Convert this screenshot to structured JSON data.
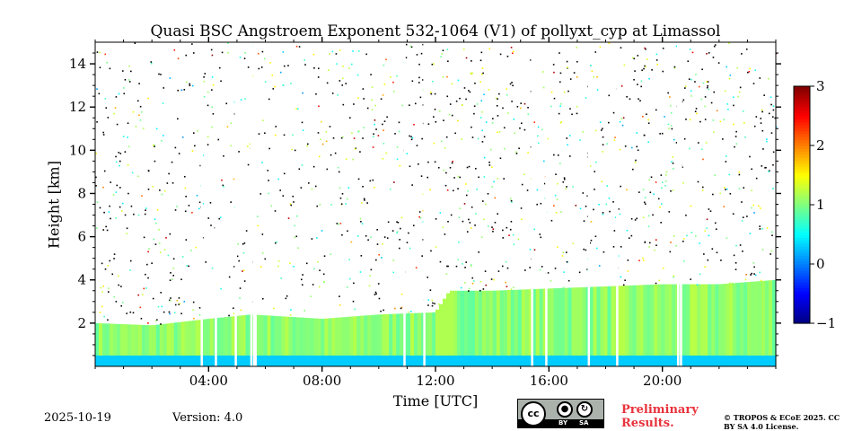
{
  "chart_data": {
    "type": "heatmap",
    "title": "Quasi BSC Angstroem Exponent 532-1064 (V1) of pollyxt_cyp at Limassol",
    "xlabel": "Time [UTC]",
    "ylabel": "Height [km]",
    "xlim": [
      0,
      24
    ],
    "ylim": [
      0,
      15
    ],
    "x_ticks": [
      {
        "value": 4,
        "label": "04:00"
      },
      {
        "value": 8,
        "label": "08:00"
      },
      {
        "value": 12,
        "label": "12:00"
      },
      {
        "value": 16,
        "label": "16:00"
      },
      {
        "value": 20,
        "label": "20:00"
      }
    ],
    "y_ticks": [
      {
        "value": 2,
        "label": "2"
      },
      {
        "value": 4,
        "label": "4"
      },
      {
        "value": 6,
        "label": "6"
      },
      {
        "value": 8,
        "label": "8"
      },
      {
        "value": 10,
        "label": "10"
      },
      {
        "value": 12,
        "label": "12"
      },
      {
        "value": 14,
        "label": "14"
      }
    ],
    "colorbar": {
      "range": [
        -1,
        3
      ],
      "colormap": "jet",
      "ticks": [
        {
          "value": 3,
          "label": "3"
        },
        {
          "value": 2,
          "label": "2"
        },
        {
          "value": 1,
          "label": "1"
        },
        {
          "value": 0,
          "label": "0"
        },
        {
          "value": -1,
          "label": "−1"
        }
      ]
    },
    "layers": {
      "aerosol_top_km": [
        {
          "t": 0.0,
          "h": 2.0
        },
        {
          "t": 2.0,
          "h": 1.9
        },
        {
          "t": 4.0,
          "h": 2.2
        },
        {
          "t": 5.5,
          "h": 2.4
        },
        {
          "t": 8.0,
          "h": 2.2
        },
        {
          "t": 10.0,
          "h": 2.4
        },
        {
          "t": 12.0,
          "h": 2.5
        },
        {
          "t": 12.5,
          "h": 3.5
        },
        {
          "t": 14.0,
          "h": 3.5
        },
        {
          "t": 16.0,
          "h": 3.6
        },
        {
          "t": 18.0,
          "h": 3.7
        },
        {
          "t": 20.0,
          "h": 3.8
        },
        {
          "t": 22.0,
          "h": 3.8
        },
        {
          "t": 24.0,
          "h": 4.0
        }
      ],
      "typical_value": 0.9
    },
    "data_gaps_utc": [
      3.75,
      4.25,
      4.95,
      5.5,
      5.6,
      5.65,
      10.9,
      11.6,
      15.4,
      15.9,
      17.4,
      18.4,
      20.55,
      20.65
    ]
  },
  "footer": {
    "date": "2025-10-19",
    "version": "Version: 4.0",
    "preliminary": "Preliminary Results.",
    "copyright": "© TROPOS & ECoE 2025. CC BY SA 4.0 License."
  },
  "license_badge": {
    "main": "cc",
    "by": "BY",
    "sa": "SA"
  },
  "colors": {
    "accent_red": "#e8323c",
    "badge_gray": "#aab2ab"
  }
}
